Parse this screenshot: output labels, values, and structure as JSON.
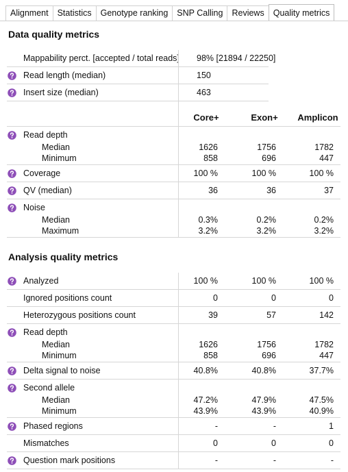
{
  "tabs": [
    {
      "label": "Alignment"
    },
    {
      "label": "Statistics"
    },
    {
      "label": "Genotype ranking"
    },
    {
      "label": "SNP Calling"
    },
    {
      "label": "Reviews"
    },
    {
      "label": "Quality metrics",
      "active": true
    }
  ],
  "data_quality": {
    "title": "Data quality metrics",
    "summary": [
      {
        "label": "Mappability perct. [accepted / total reads]",
        "value": "98%  [21894 / 22250]"
      },
      {
        "label": "Read length (median)",
        "value": "150",
        "help": true
      },
      {
        "label": "Insert size (median)",
        "value": "463",
        "help": true
      }
    ],
    "columns": [
      "Core+",
      "Exon+",
      "Amplicon"
    ],
    "rows": [
      {
        "label": "Read depth",
        "help": true,
        "sub": [
          {
            "label": "Median",
            "values": [
              "1626",
              "1756",
              "1782"
            ]
          },
          {
            "label": "Minimum",
            "values": [
              "858",
              "696",
              "447"
            ]
          }
        ]
      },
      {
        "label": "Coverage",
        "help": true,
        "values": [
          "100 %",
          "100 %",
          "100 %"
        ]
      },
      {
        "label": "QV (median)",
        "help": true,
        "values": [
          "36",
          "36",
          "37"
        ]
      },
      {
        "label": "Noise",
        "help": true,
        "sub": [
          {
            "label": "Median",
            "values": [
              "0.3%",
              "0.2%",
              "0.2%"
            ]
          },
          {
            "label": "Maximum",
            "values": [
              "3.2%",
              "3.2%",
              "3.2%"
            ]
          }
        ]
      }
    ]
  },
  "analysis_quality": {
    "title": "Analysis quality metrics",
    "rows": [
      {
        "label": "Analyzed",
        "help": true,
        "values": [
          "100 %",
          "100 %",
          "100 %"
        ]
      },
      {
        "label": "Ignored positions count",
        "values": [
          "0",
          "0",
          "0"
        ]
      },
      {
        "label": "Heterozygous positions count",
        "values": [
          "39",
          "57",
          "142"
        ]
      },
      {
        "label": "Read depth",
        "help": true,
        "sub": [
          {
            "label": "Median",
            "values": [
              "1626",
              "1756",
              "1782"
            ]
          },
          {
            "label": "Minimum",
            "values": [
              "858",
              "696",
              "447"
            ]
          }
        ]
      },
      {
        "label": "Delta signal to noise",
        "help": true,
        "values": [
          "40.8%",
          "40.8%",
          "37.7%"
        ]
      },
      {
        "label": "Second allele",
        "help": true,
        "sub": [
          {
            "label": "Median",
            "values": [
              "47.2%",
              "47.9%",
              "47.5%"
            ]
          },
          {
            "label": "Minimum",
            "values": [
              "43.9%",
              "43.9%",
              "40.9%"
            ]
          }
        ]
      },
      {
        "label": "Phased regions",
        "help": true,
        "values": [
          "-",
          "-",
          "1"
        ]
      },
      {
        "label": "Mismatches",
        "values": [
          "0",
          "0",
          "0"
        ]
      },
      {
        "label": "Question mark positions",
        "help": true,
        "values": [
          "-",
          "-",
          "-"
        ]
      }
    ]
  }
}
